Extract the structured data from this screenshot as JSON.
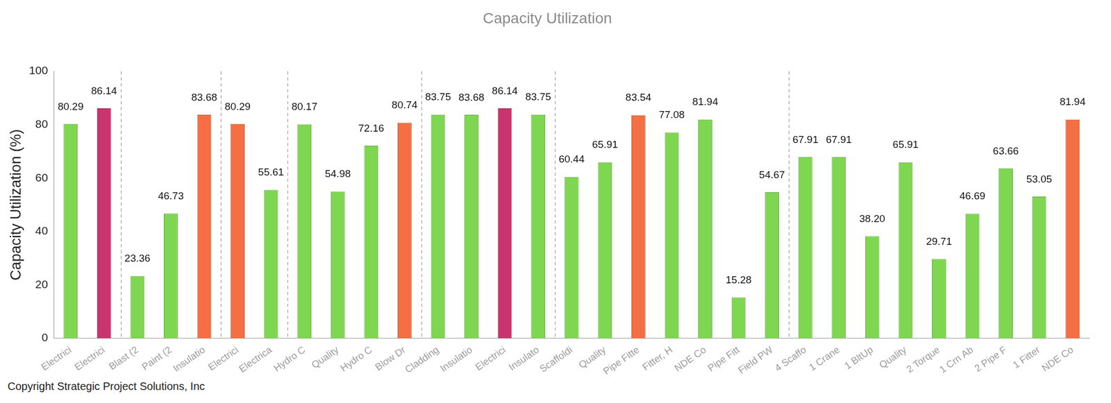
{
  "chart_data": {
    "type": "bar",
    "title": "Capacity Utilization",
    "y_label": "Capacity Utilization (%)",
    "annotations": [
      "Copyright Strategic Project Solutions, Inc"
    ],
    "categories": [
      "Electrici",
      "Electrici",
      "Blast (2",
      "Paint (2",
      "Insulatio",
      "Electrici",
      "Electrica",
      "Hydro C",
      "Quality",
      "Hydro C",
      "Blow Dr",
      "Cladding",
      "Insulatio",
      "Electrici",
      "Insulato",
      "Scaffoldi",
      "Quality",
      "Pipe Fitte",
      "Fitter, H",
      "NDE Co",
      "Pipe Fitt",
      "Field PW",
      "4 Scaffo",
      "1 Crane",
      "1 BltUp",
      "Quality",
      "2 Torque",
      "1 Crn Ab",
      "2 Pipe F",
      "1 Fitter",
      "NDE Co"
    ],
    "values": [
      80.29,
      86.14,
      23.36,
      46.73,
      83.68,
      80.29,
      55.61,
      80.17,
      54.98,
      72.16,
      80.74,
      83.75,
      83.68,
      86.14,
      83.75,
      60.44,
      65.91,
      83.54,
      77.08,
      81.94,
      15.28,
      54.67,
      67.91,
      67.91,
      38.2,
      65.91,
      29.71,
      46.69,
      63.66,
      53.05,
      81.94
    ],
    "value_labels": [
      "80.29",
      "86.14",
      "23.36",
      "46.73",
      "83.68",
      "80.29",
      "55.61",
      "80.17",
      "54.98",
      "72.16",
      "80.74",
      "83.75",
      "83.68",
      "86.14",
      "83.75",
      "60.44",
      "65.91",
      "83.54",
      "77.08",
      "81.94",
      "15.28",
      "54.67",
      "67.91",
      "67.91",
      "38.20",
      "65.91",
      "29.71",
      "46.69",
      "63.66",
      "53.05",
      "81.94"
    ],
    "colors": [
      "#7fd651",
      "#c8356e",
      "#7fd651",
      "#7fd651",
      "#f46f43",
      "#f46f43",
      "#7fd651",
      "#7fd651",
      "#7fd651",
      "#7fd651",
      "#f46f43",
      "#7fd651",
      "#7fd651",
      "#c8356e",
      "#7fd651",
      "#7fd651",
      "#7fd651",
      "#f46f43",
      "#7fd651",
      "#7fd651",
      "#7fd651",
      "#7fd651",
      "#7fd651",
      "#7fd651",
      "#7fd651",
      "#7fd651",
      "#7fd651",
      "#7fd651",
      "#7fd651",
      "#7fd651",
      "#f46f43"
    ],
    "groups": [
      2,
      3,
      2,
      4,
      4,
      7,
      9
    ],
    "ylim": [
      0,
      100
    ],
    "yticks": [
      0,
      20,
      40,
      60,
      80,
      100
    ],
    "grid": false,
    "data_labels": true
  }
}
